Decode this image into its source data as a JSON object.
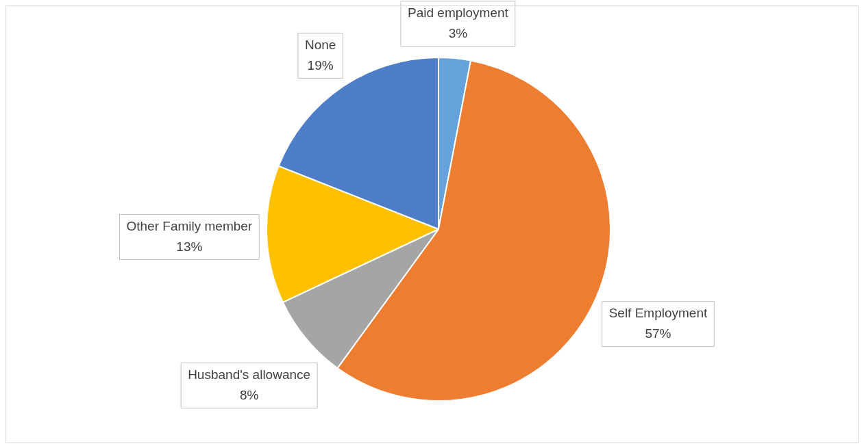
{
  "chart_data": {
    "type": "pie",
    "categories": [
      "Paid employment",
      "Self Employment",
      "Husband's allowance",
      "Other Family member",
      "None"
    ],
    "values": [
      3,
      57,
      8,
      13,
      19
    ],
    "colors": [
      "#65a2dc",
      "#ed7d31",
      "#a5a5a5",
      "#ffc000",
      "#4e7ec8"
    ],
    "value_labels": [
      "3%",
      "57%",
      "8%",
      "13%",
      "19%"
    ],
    "legend": false
  }
}
